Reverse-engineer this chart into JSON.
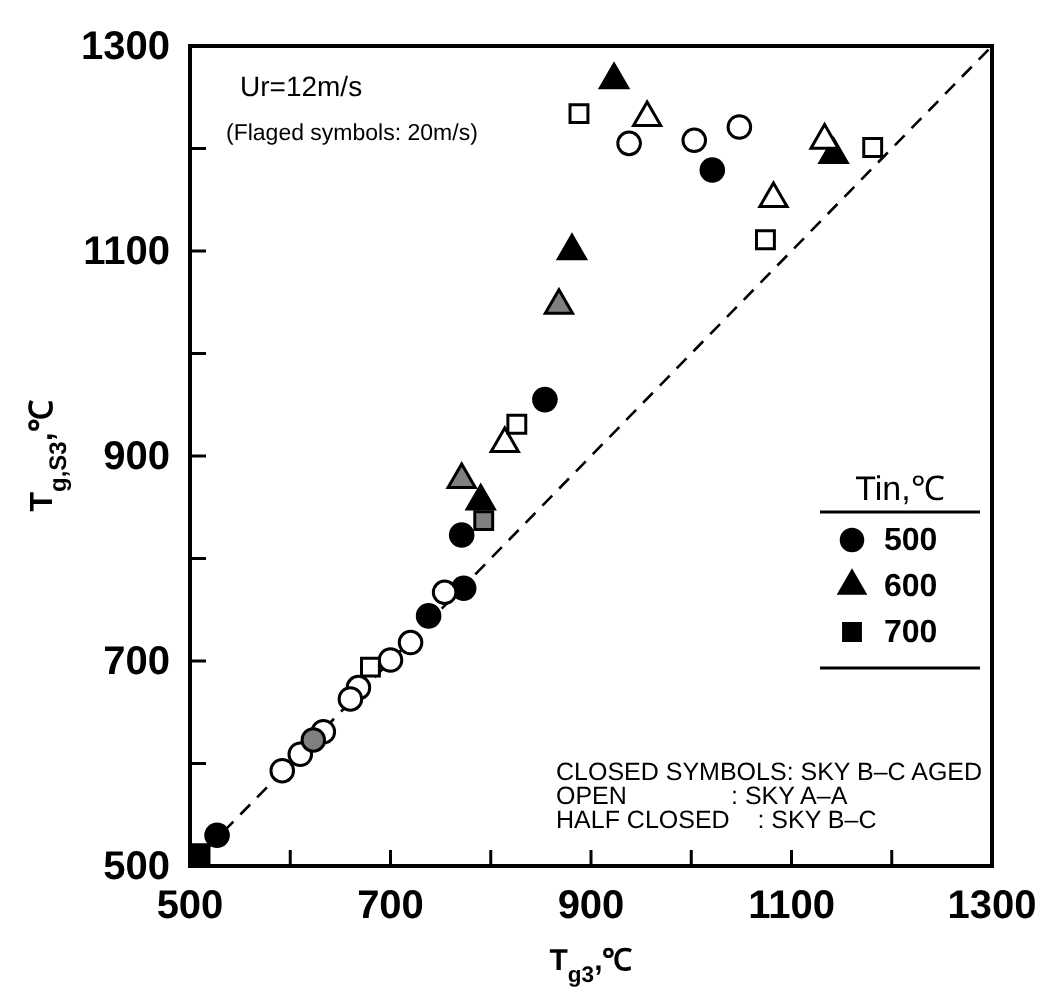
{
  "chart_data": {
    "type": "scatter",
    "xlabel": "T$_{g3}$,℃",
    "ylabel": "T$_{g,S3}$,℃",
    "legend_title": "Tin,℃",
    "legend": "right",
    "xlim": [
      500,
      1300
    ],
    "ylim": [
      500,
      1300
    ],
    "xticks": [
      500,
      {
        "value": 600,
        "label": null
      },
      700,
      {
        "value": 800,
        "label": null
      },
      900,
      {
        "value": 1000,
        "label": null
      },
      1100,
      {
        "value": 1200,
        "label": null
      },
      1300
    ],
    "yticks": [
      500,
      {
        "value": 600,
        "label": null
      },
      700,
      {
        "value": 800,
        "label": null
      },
      900,
      {
        "value": 1000,
        "label": null
      },
      1100,
      {
        "value": 1200,
        "label": null
      },
      1300
    ],
    "grid": false,
    "annotations": [
      "Ur=12m/s",
      "(Flaged symbols: 20m/s)",
      "CLOSED SYMBOLS: SKY B–C AGED",
      "OPEN               : SKY A–A",
      "HALF CLOSED    : SKY B–C"
    ],
    "series": [
      {
        "type": "line",
        "line_style": "dashed",
        "marker": "none",
        "color": "#000000",
        "x": [
          500,
          1300
        ],
        "values": [
          500,
          1300
        ]
      },
      {
        "name": "500",
        "marker": "circle",
        "color": "#000000",
        "x": [
          1021,
          854,
          771,
          773,
          738,
          527
        ],
        "values": [
          1179,
          955,
          823,
          771,
          744,
          530
        ]
      },
      {
        "name": "600",
        "marker": "triangle",
        "color": "#000000",
        "x": [
          923,
          1142,
          881,
          790
        ],
        "values": [
          1267,
          1194,
          1100,
          856
        ]
      },
      {
        "name": "700",
        "marker": "square",
        "color": "#000000",
        "x": [
          510
        ],
        "values": [
          512
        ]
      },
      {
        "marker": "circle",
        "color": "#ffffff",
        "x": [
          938,
          1003,
          1048,
          754,
          720,
          700,
          668,
          660,
          633,
          610,
          592
        ],
        "values": [
          1205,
          1208,
          1221,
          767,
          718,
          701,
          674,
          663,
          631,
          609,
          593
        ]
      },
      {
        "marker": "triangle",
        "color": "#ffffff",
        "x": [
          956,
          1133,
          1082,
          814
        ],
        "values": [
          1230,
          1208,
          1151,
          912
        ]
      },
      {
        "marker": "square",
        "color": "#ffffff",
        "x": [
          888,
          1181,
          1074,
          826,
          680
        ],
        "values": [
          1234,
          1201,
          1111,
          931,
          694
        ]
      },
      {
        "marker": "circle",
        "color": "#808080",
        "x": [
          623
        ],
        "values": [
          623
        ]
      },
      {
        "marker": "triangle",
        "color": "#808080",
        "x": [
          868,
          771
        ],
        "values": [
          1047,
          877
        ]
      },
      {
        "marker": "square",
        "color": "#808080",
        "x": [
          793
        ],
        "values": [
          837
        ]
      }
    ]
  }
}
